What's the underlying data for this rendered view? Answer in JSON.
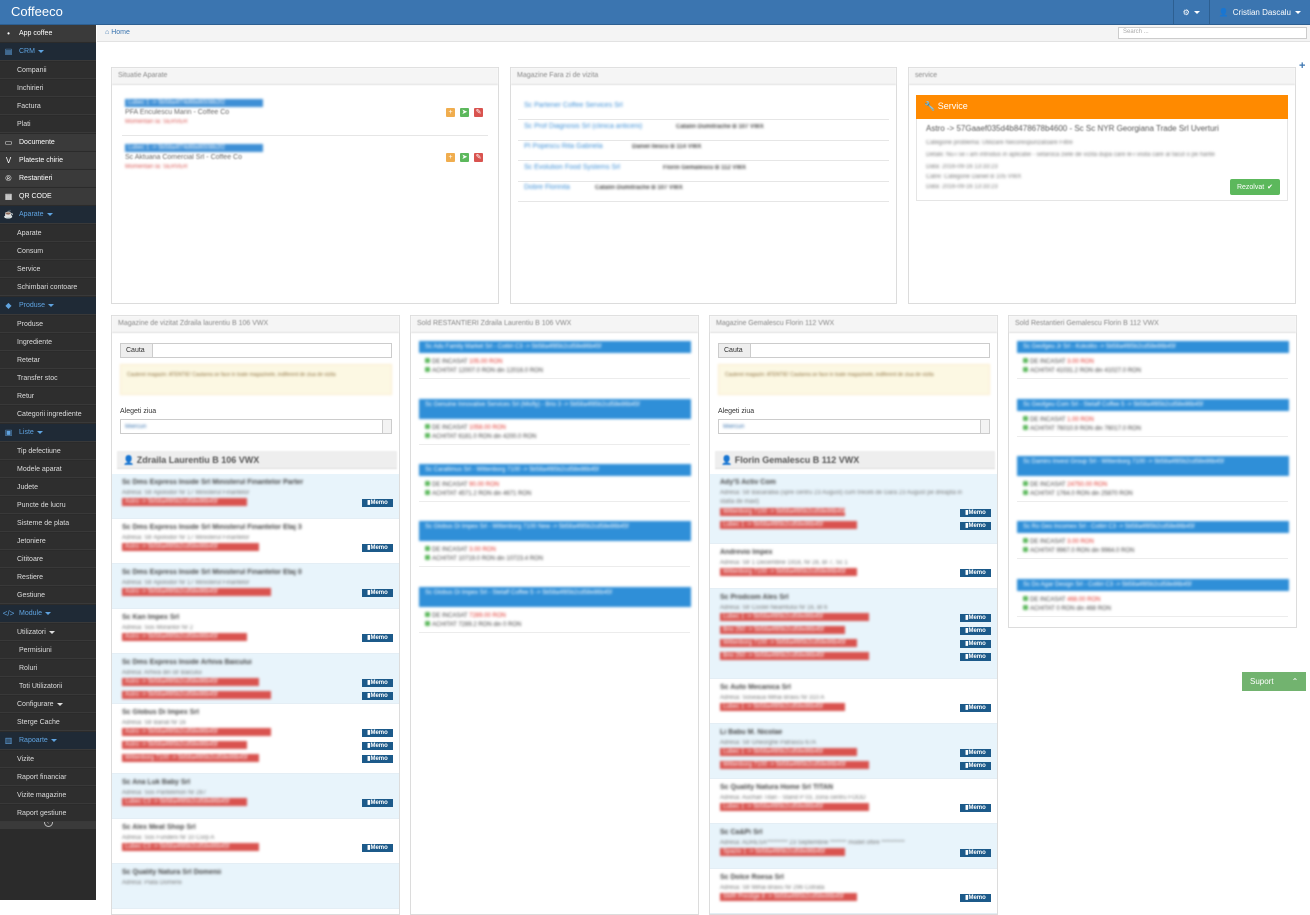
{
  "app": {
    "brand": "Coffeeco",
    "user": "Cristian Dascalu"
  },
  "breadcrumb": {
    "home": "Home"
  },
  "search": {
    "placeholder": "Search ..."
  },
  "sidebar": [
    {
      "label": "App coffee",
      "type": "top",
      "icon": "apple"
    },
    {
      "label": "CRM",
      "type": "sec",
      "icon": "database"
    },
    {
      "label": "Companii",
      "type": "sub"
    },
    {
      "label": "Inchirieri",
      "type": "sub"
    },
    {
      "label": "Factura",
      "type": "sub"
    },
    {
      "label": "Plati",
      "type": "sub"
    },
    {
      "label": "Documente",
      "type": "top",
      "icon": "file"
    },
    {
      "label": "Plateste chirie",
      "type": "top",
      "icon": "visa"
    },
    {
      "label": "Restantieri",
      "type": "top",
      "icon": "registered"
    },
    {
      "label": "QR CODE",
      "type": "top",
      "icon": "qrcode"
    },
    {
      "label": "Aparate",
      "type": "sec",
      "icon": "coffee"
    },
    {
      "label": "Aparate",
      "type": "sub"
    },
    {
      "label": "Consum",
      "type": "sub"
    },
    {
      "label": "Service",
      "type": "sub"
    },
    {
      "label": "Schimbari contoare",
      "type": "sub"
    },
    {
      "label": "Produse",
      "type": "sec",
      "icon": "tags"
    },
    {
      "label": "Produse",
      "type": "sub"
    },
    {
      "label": "Ingrediente",
      "type": "sub"
    },
    {
      "label": "Retetar",
      "type": "sub"
    },
    {
      "label": "Transfer stoc",
      "type": "sub"
    },
    {
      "label": "Retur",
      "type": "sub"
    },
    {
      "label": "Categorii ingrediente",
      "type": "sub"
    },
    {
      "label": "Liste",
      "type": "sec",
      "icon": "calendar"
    },
    {
      "label": "Tip defectiune",
      "type": "sub"
    },
    {
      "label": "Modele aparat",
      "type": "sub"
    },
    {
      "label": "Judete",
      "type": "sub"
    },
    {
      "label": "Puncte de lucru",
      "type": "sub"
    },
    {
      "label": "Sisteme de plata",
      "type": "sub"
    },
    {
      "label": "Jetoniere",
      "type": "sub"
    },
    {
      "label": "Cititoare",
      "type": "sub"
    },
    {
      "label": "Restiere",
      "type": "sub"
    },
    {
      "label": "Gestiune",
      "type": "sub"
    },
    {
      "label": "Module",
      "type": "sec",
      "icon": "code"
    },
    {
      "label": "Utilizatori",
      "type": "sub",
      "caret": true
    },
    {
      "label": "Permisiuni",
      "type": "sub2"
    },
    {
      "label": "Roluri",
      "type": "sub2"
    },
    {
      "label": "Toti Utilizatorii",
      "type": "sub2"
    },
    {
      "label": "Configurare",
      "type": "sub",
      "caret": true
    },
    {
      "label": "Sterge Cache",
      "type": "sub"
    },
    {
      "label": "Rapoarte",
      "type": "sec",
      "icon": "book"
    },
    {
      "label": "Vizite",
      "type": "sub"
    },
    {
      "label": "Raport financiar",
      "type": "sub"
    },
    {
      "label": "Vizite magazine",
      "type": "sub"
    },
    {
      "label": "Raport gestiune",
      "type": "sub"
    }
  ],
  "panels": {
    "situatie": {
      "title": "Situatie Aparate",
      "items": [
        {
          "chip": "Lubec 1 -> 5b58a4f74d6bd6508b2f2",
          "name": "PFA Enculescu Marin - Coffee Co",
          "note": "Momentan la: SERVER"
        },
        {
          "chip": "Lubec 1 -> 5b58a4f74d6bd6508b2f2",
          "name": "Sc Aktuana Comercial Srl - Coffee Co",
          "note": "Momentan la: SERVER"
        }
      ]
    },
    "faravizita": {
      "title": "Magazine Fara zi de vizita",
      "items": [
        {
          "name": "Sc Partener Coffee Services Srl",
          "agent": ""
        },
        {
          "name": "Sc Prof Diagnosis Srl (clinica anticeni)",
          "agent": "Catalin Dumitrache B 107 VWX"
        },
        {
          "name": "PI Popescu Rita Gabriela",
          "agent": "Daniel Ilescu B 114 VWX"
        },
        {
          "name": "Sc Evolution Food Systems Srl",
          "agent": "Florin Gemalescu B 112 VWX"
        },
        {
          "name": "Dobre Florinita",
          "agent": "Catalin Dumitrache B 107 VWX"
        }
      ]
    },
    "service": {
      "title": "service",
      "head": "Service",
      "main": "Astro -> 57Gaaef035d4b8478678b4600 - Sc Sc NYR Georgiana Trade Srl Uverturi",
      "lines": [
        "Categorie problema: Utilizare Necorespunzatoare Filtre",
        "Detalii: Nu-i se i am introdus in aplicatie - setaroca ziele de vizita dupa care le-i visita care al facut o pe harite",
        "Data: 2016-09-16 13:33:23",
        "Catre: Categorie Daniel B 105 VWX",
        "Data: 2016-09-16 13:33:23"
      ],
      "button": "Rezolvat"
    },
    "mag1": {
      "title": "Magazine de vizitat Zdraila laurentiu B 106 VWX",
      "search_label": "Cauta",
      "warning": "Cauterei magazin: ATENTIE! Cautarea se face in toate magazinele, indiferent de ziua de vizita",
      "day_label": "Alegeti ziua",
      "day_value": "Miercuri",
      "agent": "Zdraila Laurentiu B 106 VWX",
      "stores": [
        {
          "name": "Sc Dms Express Inside Srl Ministerul Finantelor Parter",
          "addr": "Adresa: Str Apolodor Nr 17 Ministerul Finantelor",
          "chips": [
            "Astro -> 5b58a4f85b2cd58e86b45f"
          ],
          "bg": true
        },
        {
          "name": "Sc Dms Express Inside Srl Ministerul Finantelor Etaj 3",
          "addr": "Adresa: Str Apolodor Nr 17 Ministerul Finantelor",
          "chips": [
            "Astro -> 5b58a4f85b2cd58e86b45f"
          ],
          "bg": false
        },
        {
          "name": "Sc Dms Express Inside Srl Ministerul Finantelor Etaj 0",
          "addr": "Adresa: Str Apolodor Nr 17 Ministerul Finantelor",
          "chips": [
            "Astro -> 5b58a4f85b2cd58e86b45f"
          ],
          "bg": true
        },
        {
          "name": "Sc Kan Impex Srl",
          "addr": "Adresa: Sos Morarilor Nr 2",
          "chips": [
            "Astro -> 5b58a4f85b2cd58e86b45f"
          ],
          "bg": false
        },
        {
          "name": "Sc Dms Express Inside Arhiva Baicului",
          "addr": "Adresa: Arhiva din str Baicului",
          "chips": [
            "Astro -> 5b58a4f85b2cd58e86b45f",
            "Astro -> 5b58a4f85b2cd58e86b45f"
          ],
          "bg": true
        },
        {
          "name": "Sc Globus Di Impex Srl",
          "addr": "Adresa: Str Banat Nr 16",
          "chips": [
            "Astro -> 5b58a4f85b2cd58e86b45f",
            "Astro -> 5b58a4f85b2cd58e86b45f",
            "Wittenborg 7100 -> 5b58a4f85b2cd58e86b45f"
          ],
          "bg": false
        },
        {
          "name": "Sc Ana Luk Baby Srl",
          "addr": "Adresa: Sos Pantelimon Nr 287",
          "chips": [
            "Lubec C3 -> 5b58a4f85b2cd58e86b45f"
          ],
          "bg": true
        },
        {
          "name": "Sc Alex Meat Shop Srl",
          "addr": "Adresa: Sos Fundeni Nr 10 Corp A",
          "chips": [
            "Lubec C3 -> 5b58a4f85b2cd58e86b45f"
          ],
          "bg": false
        },
        {
          "name": "Sc Quality Natura Srl Domenii",
          "addr": "Adresa: Piata Domenii",
          "chips": [],
          "bg": true
        }
      ],
      "memo": "Memo"
    },
    "sold1": {
      "title": "Sold RESTANTIERI Zdraila Laurentiu B 106 VWX",
      "items": [
        {
          "head": "Sc Adu Family Market Srl - Cottiri C3 -> 5b58a4f85b2cd58e86b45f",
          "inc": "DE INCASAT 105.00 RON",
          "ach": "ACHITAT 12007.0 RON din 12016.0 RON"
        },
        {
          "head": "Sc Genuine Innovative Services Srl (Misfly) - Brio 3 -> 5b58a4f85b2cd58e86b45f",
          "inc": "DE INCASAT 1058.00 RON",
          "ach": "ACHITAT 6181.0 RON din 4200.0 RON"
        },
        {
          "head": "Sc Carallimus Srl - Wittenborg 7100 -> 5b58a4f85b2cd58e86b45f",
          "inc": "DE INCASAT 90.00 RON",
          "ach": "ACHITAT 4571.2 RON din 4671 RON"
        },
        {
          "head": "Sc Globus Di Impex Srl - Wittenborg 7100 New -> 5b58a4f85b2cd58e86b45f",
          "inc": "DE INCASAT 3.00 RON",
          "ach": "ACHITAT 10719.0 RON din 10723.4 RON"
        },
        {
          "head": "Sc Globus Di Impex Srl - Stelaff Coffee 5 -> 5b58a4f85b2cd58e86b45f",
          "inc": "DE INCASAT 7289.00 RON",
          "ach": "ACHITAT 7289.2 RON din 0 RON"
        }
      ]
    },
    "mag2": {
      "title": "Magazine Gemalescu Florin 112 VWX",
      "search_label": "Cauta",
      "warning": "Cauterei magazin: ATENTIE! Cautarea se face in toate magazinele, indiferent de ziua de vizita",
      "day_label": "Alegeti ziua",
      "day_value": "Miercuri",
      "agent": "Florin Gemalescu B 112 VWX",
      "stores": [
        {
          "name": "Ady'S Activ Com",
          "addr": "Adresa: Str Basarabia (spre centru 23 August) cum treceti de Gara 23 August pe dreapta in statia de maxi)",
          "chips": [
            "Wittenborg 7100 -> 5b58a4f85b2cd58e86b45f",
            "Lubec 1 -> 5b58a4f85b2cd58e86b45f"
          ],
          "bg": true
        },
        {
          "name": "Andrevio Impex",
          "addr": "Adresa: Str 1 Decembrie 1918, Nr 28, Bl 7, Sc 1",
          "chips": [
            "Wittenborg 7100 -> 5b58a4f85b2cd58e86b45f"
          ],
          "bg": false
        },
        {
          "name": "Sc Prodcom Ales Srl",
          "addr": "Adresa: Str Costel Neamtului Nr 16, Bl 6",
          "chips": [
            "Lubec 1 -> 5b58a4f85b2cd58e86b45f",
            "Brio 250 -> 5b58a4f85b2cd58e86b45f",
            "Wittenborg 7100 -> 5b58a4f85b2cd58e86b45f",
            "Brio 250 -> 5b58a4f85b2cd58e86b45f"
          ],
          "bg": true
        },
        {
          "name": "Sc Auto Mecanica Srl",
          "addr": "Adresa: Soseaua Mihai Bravu Nr 310 A",
          "chips": [
            "Lubec 1 -> 5b58a4f85b2cd58e86b45f"
          ],
          "bg": false
        },
        {
          "name": "Li Babu M. Nicolae",
          "addr": "Adresa: Str Gheorghe Patrascu 67A",
          "chips": [
            "Lubec 1 -> 5b58a4f85b2cd58e86b45f",
            "Wittenborg 7100 -> 5b58a4f85b2cd58e86b45f"
          ],
          "bg": true
        },
        {
          "name": "Sc Quality Natura Home Srl TITAN",
          "addr": "Adresa: Auchan Titan - Stand P 03, zona centru FOOD",
          "chips": [
            "Lubec 1 -> 5b58a4f85b2cd58e86b45f"
          ],
          "bg": false
        },
        {
          "name": "Sc Ca&Pi Srl",
          "addr": "Adresa: ADRESA********* 23 Septembrie ******* modet oftire **********",
          "chips": [
            "Spazio 1 -> 5b58a4f85b2cd58e86b45f"
          ],
          "bg": true
        },
        {
          "name": "Sc Dolce Roesa Srl",
          "addr": "Adresa: Str Mihai Bravu Nr 296 Cotrata",
          "chips": [
            "SMR Prestige 8 -> 5b58a4f85b2cd58e86b45f"
          ],
          "bg": false
        }
      ],
      "memo": "Memo"
    },
    "sold2": {
      "title": "Sold Restantieri Gemalescu Florin B 112 VWX",
      "items": [
        {
          "head": "Sc Geofgeu Jr Srl - Kokolito -> 5b58a4f85b2cd58e86b45f",
          "inc": "DE INCASAT 3.00 RON",
          "ach": "ACHITAT 41031.2 RON din 41027.0 RON"
        },
        {
          "head": "Sc Geofgeu Com Srl - Stelaff Coffee 5 -> 5b58a4f85b2cd58e86b45f",
          "inc": "DE INCASAT 1.00 RON",
          "ach": "ACHITAT 76010.9 RON din 76017.0 RON"
        },
        {
          "head": "Sc Damiro Invest Group Srl - Wittenborg 7100 -> 5b58a4f85b2cd58e86b45f",
          "inc": "DE INCASAT 24750.00 RON",
          "ach": "ACHITAT 1764.0 RON din 25870 RON"
        },
        {
          "head": "Sc Ro Geo Incomex Srl - Cottiri C3 -> 5b58a4f85b2cd58e86b45f",
          "inc": "DE INCASAT 3.00 RON",
          "ach": "ACHITAT 9967.0 RON din 9964.0 RON"
        },
        {
          "head": "Sc Do Agar Design Srl - Cottiri C3 -> 5b58a4f85b2cd58e86b45f",
          "inc": "DE INCASAT 468.00 RON",
          "ach": "ACHITAT 0 RON din 468 RON"
        }
      ]
    }
  },
  "suport": {
    "label": "Suport"
  },
  "colors": {
    "topbar": "#3b75b0",
    "sidebar": "#2b2b2b",
    "service": "#ff8a00",
    "resolved": "#5cb85c",
    "chip_blue": "#3d8fd6",
    "chip_red": "#d9534f"
  }
}
